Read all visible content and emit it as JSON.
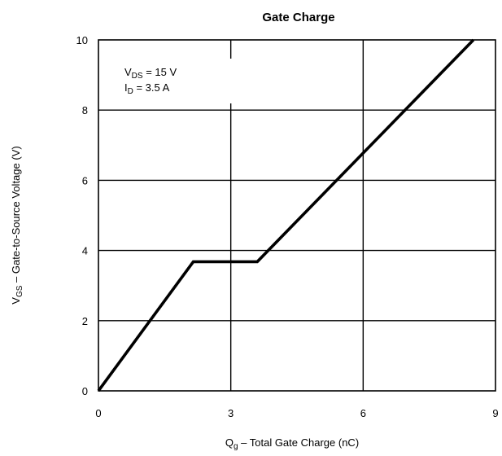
{
  "chart_data": {
    "type": "line",
    "title": "Gate Charge",
    "xlabel": {
      "main": "Q",
      "sub": "g",
      "rest": "  –  Total Gate Charge (nC)"
    },
    "ylabel": {
      "main": "V",
      "sub": "GS",
      "rest": "  –  Gate-to-Source Voltage (V)"
    },
    "xlim": [
      0,
      9
    ],
    "ylim": [
      0,
      10
    ],
    "xticks": [
      "0",
      "3",
      "6",
      "9"
    ],
    "yticks": [
      "0",
      "2",
      "4",
      "6",
      "8",
      "10"
    ],
    "grid": true,
    "annotations": [
      {
        "main": "V",
        "sub": "DS",
        "rest": " = 15 V"
      },
      {
        "main": "I",
        "sub": "D",
        "rest": " = 3.5 A"
      }
    ],
    "series": [
      {
        "x": [
          0,
          2.15,
          3.6,
          8.5
        ],
        "y": [
          0,
          3.68,
          3.68,
          10.0
        ]
      }
    ]
  }
}
